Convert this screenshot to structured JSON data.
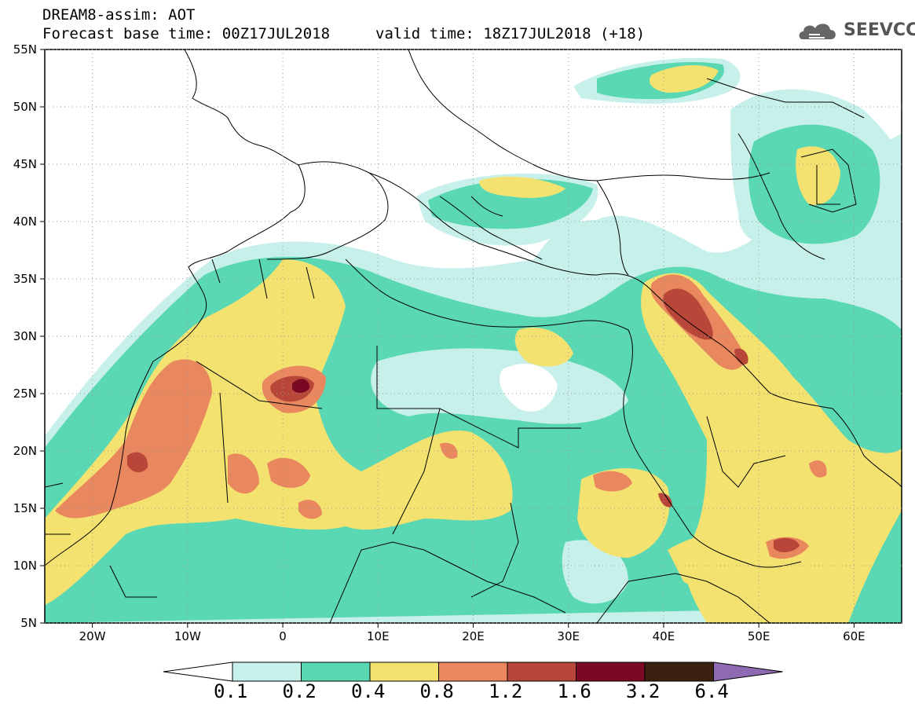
{
  "header": {
    "model_title": "DREAM8-assim: AOT",
    "base_time": "Forecast base time: 00Z17JUL2018",
    "valid_time": "valid time: 18Z17JUL2018 (+18)"
  },
  "logo": {
    "text": "SEEVCCC",
    "icon": "cloud-icon"
  },
  "map": {
    "variable": "AOT",
    "lat_labels": [
      "55N",
      "50N",
      "45N",
      "40N",
      "35N",
      "30N",
      "25N",
      "20N",
      "15N",
      "10N",
      "5N"
    ],
    "lon_labels": [
      "20W",
      "10W",
      "0",
      "10E",
      "20E",
      "30E",
      "40E",
      "50E",
      "60E"
    ],
    "lon_range": [
      -25,
      65
    ],
    "lat_range": [
      5,
      55
    ],
    "projection": "lat-lon"
  },
  "colorbar": {
    "levels": [
      "0.1",
      "0.2",
      "0.4",
      "0.8",
      "1.2",
      "1.6",
      "3.2",
      "6.4"
    ],
    "colors": [
      "#c8f0ea",
      "#5ad8b4",
      "#f4e270",
      "#e9875e",
      "#b8473a",
      "#7a0a24",
      "#3b2112",
      "#8e6ab2"
    ],
    "below_color": "#ffffff"
  }
}
